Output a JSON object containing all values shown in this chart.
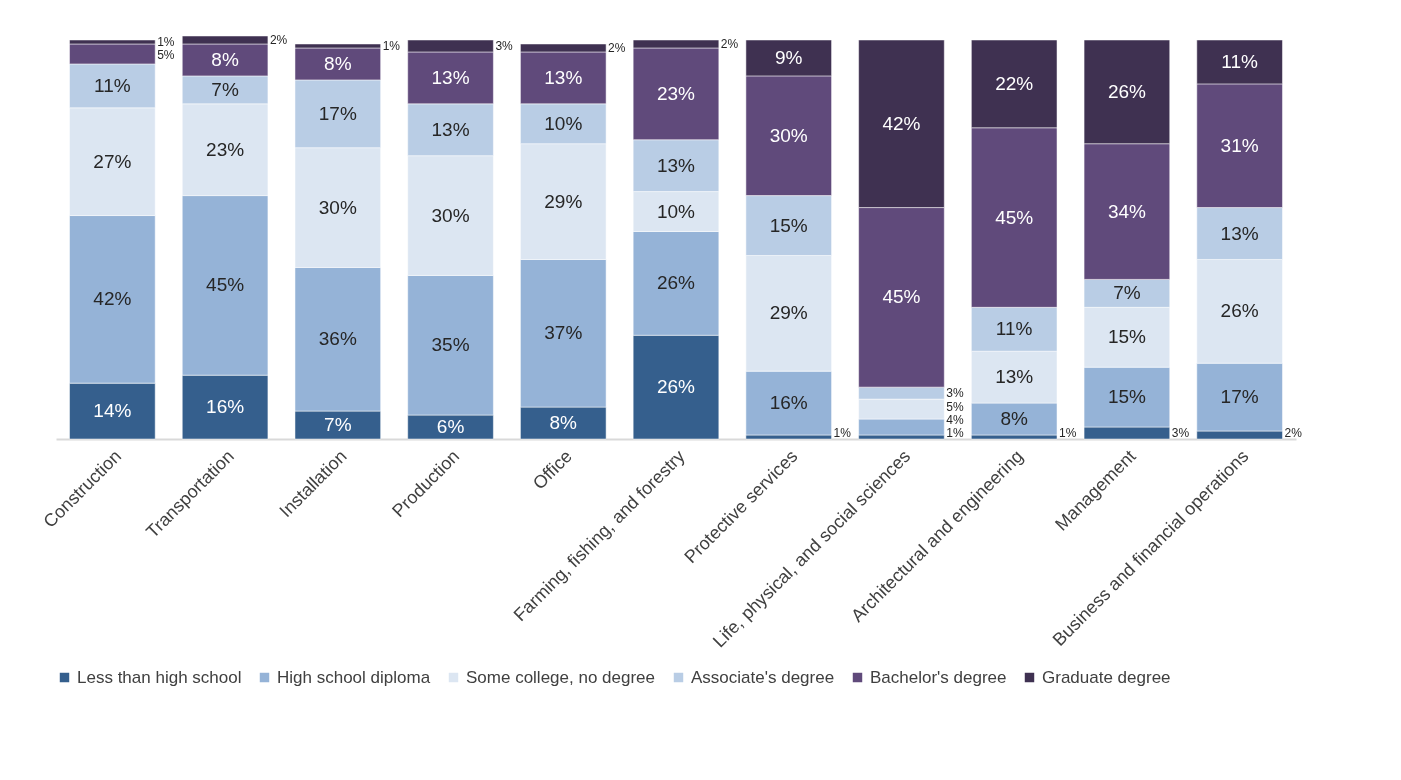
{
  "chart_data": {
    "type": "bar",
    "stacked": true,
    "tick_labels": "x",
    "legend": "bottom",
    "categories": [
      "Construction",
      "Transportation",
      "Installation",
      "Production",
      "Office",
      "Farming, fishing, and forestry",
      "Protective services",
      "Life, physical, and social sciences",
      "Architectural and engineering",
      "Management",
      "Business and financial operations"
    ],
    "series": [
      {
        "name": "Less than high school",
        "color": "#355f8d",
        "values": [
          14,
          16,
          7,
          6,
          8,
          26,
          1,
          1,
          1,
          3,
          2
        ],
        "value_labels": [
          "14%",
          "16%",
          "7%",
          "6%",
          "8%",
          "26%",
          "1%",
          "1%",
          "1%",
          "3%",
          "2%"
        ]
      },
      {
        "name": "High school diploma",
        "color": "#95b3d7",
        "values": [
          42,
          45,
          36,
          35,
          37,
          26,
          16,
          4,
          8,
          15,
          17
        ],
        "value_labels": [
          "42%",
          "45%",
          "36%",
          "35%",
          "37%",
          "26%",
          "16%",
          "4%",
          "8%",
          "15%",
          "17%"
        ]
      },
      {
        "name": "Some college, no degree",
        "color": "#dce6f2",
        "values": [
          27,
          23,
          30,
          30,
          29,
          10,
          29,
          5,
          13,
          15,
          26
        ],
        "value_labels": [
          "27%",
          "23%",
          "30%",
          "30%",
          "29%",
          "10%",
          "29%",
          "5%",
          "13%",
          "15%",
          "26%"
        ]
      },
      {
        "name": "Associate's degree",
        "color": "#b9cde5",
        "values": [
          11,
          7,
          17,
          13,
          10,
          13,
          15,
          3,
          11,
          7,
          13
        ],
        "value_labels": [
          "11%",
          "7%",
          "17%",
          "13%",
          "10%",
          "13%",
          "15%",
          "3%",
          "11%",
          "7%",
          "13%"
        ]
      },
      {
        "name": "Bachelor's degree",
        "color": "#604a7b",
        "values": [
          5,
          8,
          8,
          13,
          13,
          23,
          30,
          45,
          45,
          34,
          31
        ],
        "value_labels": [
          "5%",
          "8%",
          "8%",
          "13%",
          "13%",
          "23%",
          "30%",
          "45%",
          "45%",
          "34%",
          "31%"
        ]
      },
      {
        "name": "Graduate degree",
        "color": "#3f3151",
        "values": [
          1,
          2,
          1,
          3,
          2,
          2,
          9,
          42,
          22,
          26,
          11
        ],
        "value_labels": [
          "1%",
          "2%",
          "1%",
          "3%",
          "2%",
          "2%",
          "9%",
          "42%",
          "22%",
          "26%",
          "11%"
        ]
      }
    ]
  }
}
